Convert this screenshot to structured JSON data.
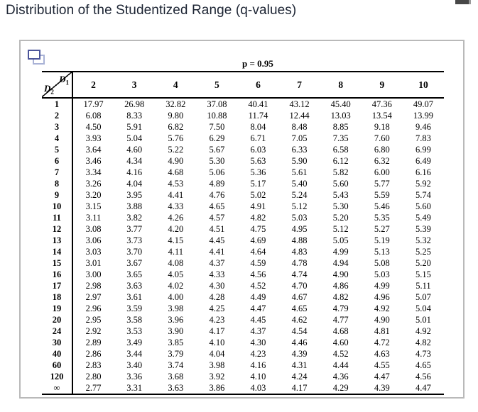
{
  "page": {
    "title": "Distribution of the Studentized Range (q-values)"
  },
  "colors": {
    "title_text": "#1c2433",
    "panel_border": "#b9b9b9",
    "icon_front_blue": "#4c559a",
    "icon_back_blue": "#a9b2d6",
    "table_rule": "#000000",
    "scroll_thumb": "#474747"
  },
  "icons": {
    "panel_corner": "duplicate-window-icon"
  },
  "table": {
    "p_label": "p = 0.95",
    "corner": {
      "top_var": "D",
      "top_sub": "1",
      "bottom_var": "D",
      "bottom_sub": "2"
    },
    "col_headers": [
      "2",
      "3",
      "4",
      "5",
      "6",
      "7",
      "8",
      "9",
      "10"
    ],
    "rows": [
      {
        "label": "1",
        "values": [
          "17.97",
          "26.98",
          "32.82",
          "37.08",
          "40.41",
          "43.12",
          "45.40",
          "47.36",
          "49.07"
        ]
      },
      {
        "label": "2",
        "values": [
          "6.08",
          "8.33",
          "9.80",
          "10.88",
          "11.74",
          "12.44",
          "13.03",
          "13.54",
          "13.99"
        ]
      },
      {
        "label": "3",
        "values": [
          "4.50",
          "5.91",
          "6.82",
          "7.50",
          "8.04",
          "8.48",
          "8.85",
          "9.18",
          "9.46"
        ]
      },
      {
        "label": "4",
        "values": [
          "3.93",
          "5.04",
          "5.76",
          "6.29",
          "6.71",
          "7.05",
          "7.35",
          "7.60",
          "7.83"
        ]
      },
      {
        "label": "5",
        "values": [
          "3.64",
          "4.60",
          "5.22",
          "5.67",
          "6.03",
          "6.33",
          "6.58",
          "6.80",
          "6.99"
        ]
      },
      {
        "label": "6",
        "values": [
          "3.46",
          "4.34",
          "4.90",
          "5.30",
          "5.63",
          "5.90",
          "6.12",
          "6.32",
          "6.49"
        ]
      },
      {
        "label": "7",
        "values": [
          "3.34",
          "4.16",
          "4.68",
          "5.06",
          "5.36",
          "5.61",
          "5.82",
          "6.00",
          "6.16"
        ]
      },
      {
        "label": "8",
        "values": [
          "3.26",
          "4.04",
          "4.53",
          "4.89",
          "5.17",
          "5.40",
          "5.60",
          "5.77",
          "5.92"
        ]
      },
      {
        "label": "9",
        "values": [
          "3.20",
          "3.95",
          "4.41",
          "4.76",
          "5.02",
          "5.24",
          "5.43",
          "5.59",
          "5.74"
        ]
      },
      {
        "label": "10",
        "values": [
          "3.15",
          "3.88",
          "4.33",
          "4.65",
          "4.91",
          "5.12",
          "5.30",
          "5.46",
          "5.60"
        ]
      },
      {
        "label": "11",
        "values": [
          "3.11",
          "3.82",
          "4.26",
          "4.57",
          "4.82",
          "5.03",
          "5.20",
          "5.35",
          "5.49"
        ]
      },
      {
        "label": "12",
        "values": [
          "3.08",
          "3.77",
          "4.20",
          "4.51",
          "4.75",
          "4.95",
          "5.12",
          "5.27",
          "5.39"
        ]
      },
      {
        "label": "13",
        "values": [
          "3.06",
          "3.73",
          "4.15",
          "4.45",
          "4.69",
          "4.88",
          "5.05",
          "5.19",
          "5.32"
        ]
      },
      {
        "label": "14",
        "values": [
          "3.03",
          "3.70",
          "4.11",
          "4.41",
          "4.64",
          "4.83",
          "4.99",
          "5.13",
          "5.25"
        ]
      },
      {
        "label": "15",
        "values": [
          "3.01",
          "3.67",
          "4.08",
          "4.37",
          "4.59",
          "4.78",
          "4.94",
          "5.08",
          "5.20"
        ]
      },
      {
        "label": "16",
        "values": [
          "3.00",
          "3.65",
          "4.05",
          "4.33",
          "4.56",
          "4.74",
          "4.90",
          "5.03",
          "5.15"
        ]
      },
      {
        "label": "17",
        "values": [
          "2.98",
          "3.63",
          "4.02",
          "4.30",
          "4.52",
          "4.70",
          "4.86",
          "4.99",
          "5.11"
        ]
      },
      {
        "label": "18",
        "values": [
          "2.97",
          "3.61",
          "4.00",
          "4.28",
          "4.49",
          "4.67",
          "4.82",
          "4.96",
          "5.07"
        ]
      },
      {
        "label": "19",
        "values": [
          "2.96",
          "3.59",
          "3.98",
          "4.25",
          "4.47",
          "4.65",
          "4.79",
          "4.92",
          "5.04"
        ]
      },
      {
        "label": "20",
        "values": [
          "2.95",
          "3.58",
          "3.96",
          "4.23",
          "4.45",
          "4.62",
          "4.77",
          "4.90",
          "5.01"
        ]
      },
      {
        "label": "24",
        "values": [
          "2.92",
          "3.53",
          "3.90",
          "4.17",
          "4.37",
          "4.54",
          "4.68",
          "4.81",
          "4.92"
        ]
      },
      {
        "label": "30",
        "values": [
          "2.89",
          "3.49",
          "3.85",
          "4.10",
          "4.30",
          "4.46",
          "4.60",
          "4.72",
          "4.82"
        ]
      },
      {
        "label": "40",
        "values": [
          "2.86",
          "3.44",
          "3.79",
          "4.04",
          "4.23",
          "4.39",
          "4.52",
          "4.63",
          "4.73"
        ]
      },
      {
        "label": "60",
        "values": [
          "2.83",
          "3.40",
          "3.74",
          "3.98",
          "4.16",
          "4.31",
          "4.44",
          "4.55",
          "4.65"
        ]
      },
      {
        "label": "120",
        "values": [
          "2.80",
          "3.36",
          "3.68",
          "3.92",
          "4.10",
          "4.24",
          "4.36",
          "4.47",
          "4.56"
        ]
      },
      {
        "label": "∞",
        "values": [
          "2.77",
          "3.31",
          "3.63",
          "3.86",
          "4.03",
          "4.17",
          "4.29",
          "4.39",
          "4.47"
        ]
      }
    ]
  }
}
